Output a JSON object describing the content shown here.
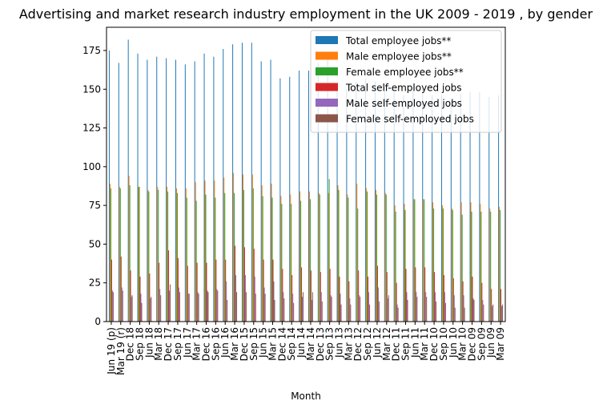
{
  "chart_data": {
    "type": "bar",
    "title": "Advertising and market research industry employment in the UK 2009 - 2019 , by gender",
    "xlabel": "Month",
    "ylabel": "",
    "ylim": [
      0,
      190
    ],
    "yticks": [
      0,
      25,
      50,
      75,
      100,
      125,
      150,
      175
    ],
    "grid": false,
    "legend_position": "top-right",
    "categories": [
      "Jun 19 (p)",
      "Mar 19 (r)",
      "Dec 18",
      "Sep 18",
      "Jun 18",
      "Mar 18",
      "Dec 17",
      "Sep 17",
      "Jun 17",
      "Mar 17",
      "Dec 16",
      "Sep 16",
      "Jun 16",
      "Mar 16",
      "Dec 15",
      "Sep 15",
      "Jun 15",
      "Mar 15",
      "Dec 14",
      "Sep 14",
      "Jun 14",
      "Mar 14",
      "Dec 13",
      "Sep 13",
      "Jun 13",
      "Mar 13",
      "Dec 12",
      "Sep 12",
      "Jun 12",
      "Mar 12",
      "Dec 11",
      "Sep 11",
      "Jun 11",
      "Mar 11",
      "Dec 10",
      "Sep 10",
      "Jun 10",
      "Mar 10",
      "Dec 09",
      "Sep 09",
      "Jun 09",
      "Mar 09"
    ],
    "series": [
      {
        "name": "Total employee jobs**",
        "color": "#1f77b4",
        "values": [
          175,
          167,
          182,
          173,
          169,
          171,
          170,
          169,
          166,
          168,
          173,
          171,
          176,
          179,
          180,
          180,
          168,
          169,
          157,
          158,
          162,
          162,
          167,
          170,
          153,
          150,
          155,
          157,
          155,
          153,
          148,
          146,
          152,
          150,
          146,
          146,
          143,
          147,
          148,
          148,
          145,
          146
        ]
      },
      {
        "name": "Male employee jobs**",
        "color": "#ff7f0e",
        "values": [
          89,
          87,
          94,
          87,
          85,
          87,
          87,
          86,
          86,
          90,
          91,
          91,
          93,
          96,
          95,
          95,
          88,
          89,
          81,
          82,
          84,
          84,
          83,
          83,
          88,
          82,
          89,
          86,
          85,
          83,
          75,
          76,
          79,
          79,
          77,
          75,
          73,
          77,
          77,
          76,
          73,
          74
        ]
      },
      {
        "name": "Female employee jobs**",
        "color": "#2ca02c",
        "values": [
          86,
          86,
          88,
          87,
          84,
          85,
          84,
          83,
          80,
          78,
          82,
          80,
          83,
          83,
          85,
          86,
          81,
          80,
          76,
          76,
          78,
          79,
          82,
          92,
          85,
          80,
          73,
          84,
          82,
          82,
          71,
          72,
          79,
          79,
          73,
          73,
          72,
          69,
          71,
          71,
          71,
          72
        ]
      },
      {
        "name": "Total self-employed jobs",
        "color": "#d62728",
        "values": [
          40,
          42,
          33,
          29,
          31,
          38,
          46,
          41,
          36,
          38,
          38,
          40,
          40,
          49,
          48,
          47,
          40,
          40,
          34,
          30,
          35,
          33,
          32,
          34,
          29,
          26,
          33,
          29,
          36,
          32,
          25,
          34,
          35,
          35,
          32,
          30,
          28,
          26,
          29,
          25,
          21,
          21
        ]
      },
      {
        "name": "Male self-employed jobs",
        "color": "#9467bd",
        "values": [
          20,
          22,
          16,
          18,
          15,
          21,
          20,
          22,
          18,
          19,
          20,
          21,
          26,
          30,
          30,
          29,
          22,
          26,
          19,
          18,
          16,
          14,
          19,
          17,
          18,
          15,
          17,
          19,
          22,
          15,
          11,
          19,
          19,
          19,
          19,
          19,
          17,
          17,
          15,
          14,
          10,
          10
        ]
      },
      {
        "name": "Female self-employed jobs",
        "color": "#8c564b",
        "values": [
          19,
          20,
          17,
          12,
          16,
          17,
          24,
          19,
          18,
          18,
          19,
          20,
          14,
          19,
          19,
          18,
          18,
          14,
          15,
          12,
          19,
          19,
          13,
          16,
          11,
          11,
          16,
          11,
          13,
          17,
          9,
          14,
          16,
          16,
          13,
          12,
          9,
          9,
          14,
          11,
          11,
          11
        ]
      }
    ]
  }
}
